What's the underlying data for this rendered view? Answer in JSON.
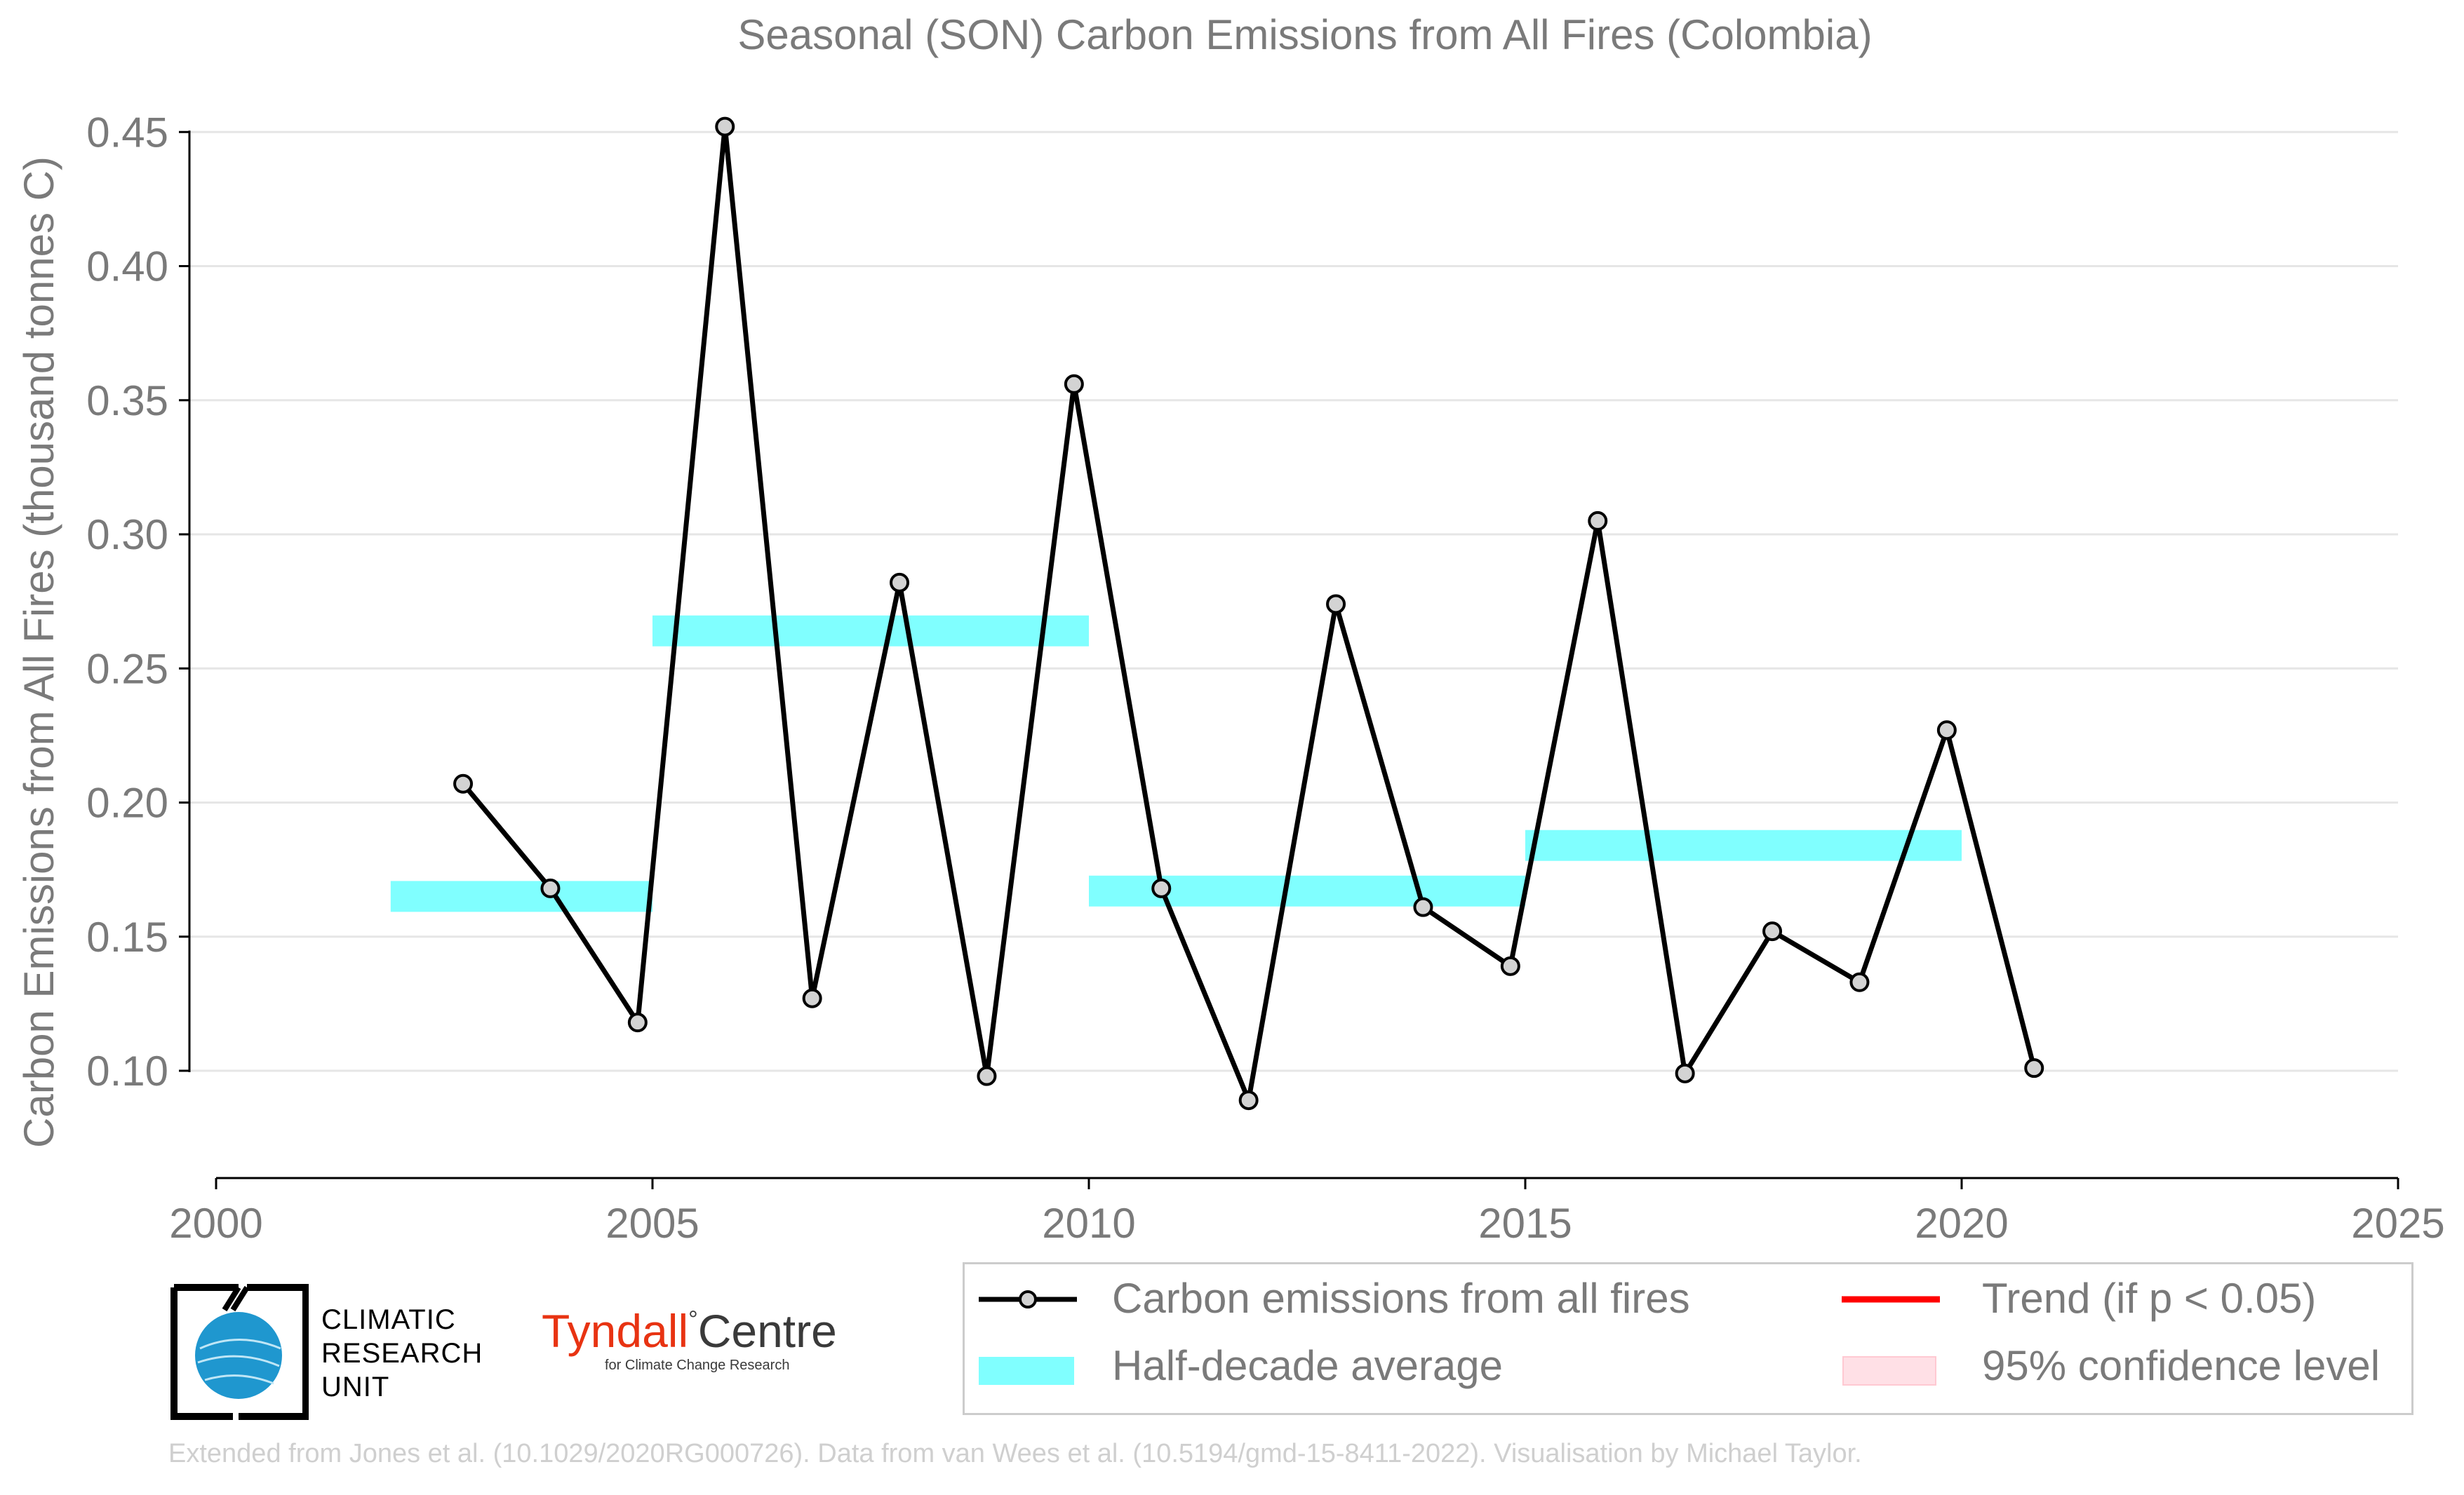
{
  "chart_data": {
    "type": "line",
    "title": "Seasonal (SON) Carbon Emissions from All Fires (Colombia)",
    "xlabel": "",
    "ylabel": "Carbon Emissions from All Fires (thousand tonnes C)",
    "xlim": [
      2000,
      2025
    ],
    "ylim": [
      0.06,
      0.46
    ],
    "xticks": [
      "2000",
      "2005",
      "2010",
      "2015",
      "2020",
      "2025"
    ],
    "yticks": [
      "0.10",
      "0.15",
      "0.20",
      "0.25",
      "0.30",
      "0.35",
      "0.40",
      "0.45"
    ],
    "grid": "horizontal",
    "series": [
      {
        "name": "Carbon emissions from all fires",
        "color": "#000000",
        "x": [
          2002.83,
          2003.83,
          2004.83,
          2005.83,
          2006.83,
          2007.83,
          2008.83,
          2009.83,
          2010.83,
          2011.83,
          2012.83,
          2013.83,
          2014.83,
          2015.83,
          2016.83,
          2017.83,
          2018.83,
          2019.83,
          2020.83
        ],
        "values": [
          0.207,
          0.168,
          0.118,
          0.452,
          0.127,
          0.282,
          0.098,
          0.356,
          0.168,
          0.089,
          0.274,
          0.161,
          0.139,
          0.305,
          0.099,
          0.152,
          0.133,
          0.227,
          0.101
        ]
      },
      {
        "name": "Half-decade average",
        "color": "#80ffff",
        "segments": [
          {
            "x": [
              2002,
              2005
            ],
            "value": 0.165
          },
          {
            "x": [
              2005,
              2010
            ],
            "value": 0.264
          },
          {
            "x": [
              2010,
              2015
            ],
            "value": 0.167
          },
          {
            "x": [
              2015,
              2020
            ],
            "value": 0.184
          }
        ]
      }
    ],
    "legend": {
      "position": "bottom-right",
      "entries": [
        {
          "label": "Carbon emissions from all fires",
          "symbol": "line-marker",
          "color": "#000000"
        },
        {
          "label": "Trend (if p < 0.05)",
          "symbol": "line",
          "color": "#ff0000"
        },
        {
          "label": "Half-decade average",
          "symbol": "band",
          "color": "#80ffff"
        },
        {
          "label": "95% confidence level",
          "symbol": "band",
          "color": "#ffe0e6"
        }
      ]
    }
  },
  "logos": {
    "cru": {
      "line1": "CLIMATIC",
      "line2": "RESEARCH",
      "line3": "UNIT"
    },
    "tyndall": {
      "name_red": "Tyndall",
      "degree": "°",
      "name_dark": "Centre",
      "subtitle": "for Climate Change Research"
    }
  },
  "credit": "Extended from Jones et al. (10.1029/2020RG000726). Data from van Wees et al. (10.5194/gmd-15-8411-2022). Visualisation by Michael Taylor."
}
